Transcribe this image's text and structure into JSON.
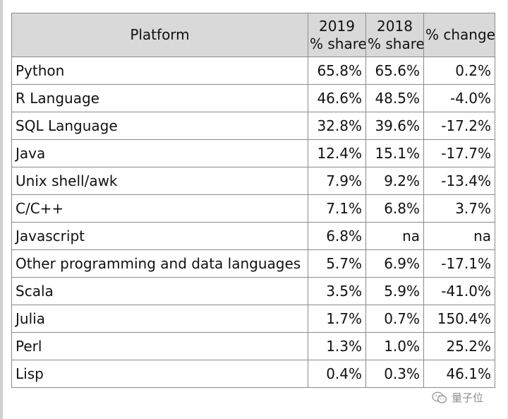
{
  "table": {
    "headers": {
      "platform": "Platform",
      "y2019_line1": "2019",
      "y2019_line2": "% share",
      "y2018_line1": "2018",
      "y2018_line2": "% share",
      "change": "% change"
    },
    "rows": [
      {
        "platform": "Python",
        "share_2019": "65.8%",
        "share_2018": "65.6%",
        "change": "0.2%"
      },
      {
        "platform": "R Language",
        "share_2019": "46.6%",
        "share_2018": "48.5%",
        "change": "-4.0%"
      },
      {
        "platform": "SQL Language",
        "share_2019": "32.8%",
        "share_2018": "39.6%",
        "change": "-17.2%"
      },
      {
        "platform": "Java",
        "share_2019": "12.4%",
        "share_2018": "15.1%",
        "change": "-17.7%"
      },
      {
        "platform": "Unix shell/awk",
        "share_2019": "7.9%",
        "share_2018": "9.2%",
        "change": "-13.4%"
      },
      {
        "platform": "C/C++",
        "share_2019": "7.1%",
        "share_2018": "6.8%",
        "change": "3.7%"
      },
      {
        "platform": "Javascript",
        "share_2019": "6.8%",
        "share_2018": "na",
        "change": "na"
      },
      {
        "platform": "Other programming and data languages",
        "share_2019": "5.7%",
        "share_2018": "6.9%",
        "change": "-17.1%"
      },
      {
        "platform": "Scala",
        "share_2019": "3.5%",
        "share_2018": "5.9%",
        "change": "-41.0%"
      },
      {
        "platform": "Julia",
        "share_2019": "1.7%",
        "share_2018": "0.7%",
        "change": "150.4%"
      },
      {
        "platform": "Perl",
        "share_2019": "1.3%",
        "share_2018": "1.0%",
        "change": "25.2%"
      },
      {
        "platform": "Lisp",
        "share_2019": "0.4%",
        "share_2018": "0.3%",
        "change": "46.1%"
      }
    ]
  },
  "watermark": {
    "icon": "wechat-icon",
    "text": "量子位"
  }
}
